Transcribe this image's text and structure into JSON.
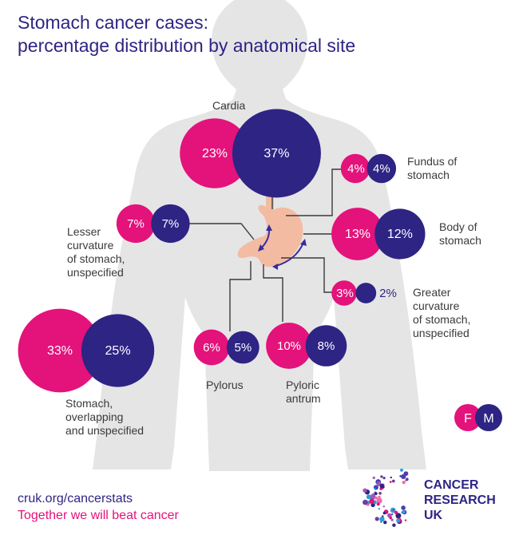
{
  "title_lines": [
    "Stomach cancer cases:",
    "percentage distribution by anatomical site"
  ],
  "colors": {
    "female": "#e4127b",
    "male": "#2e2484",
    "body": "#e5e5e6",
    "stomach": "#f3bca2",
    "line": "#3a3a3a",
    "arrow": "#3b2a9e"
  },
  "legend": {
    "female": "F",
    "male": "M"
  },
  "footer": {
    "url": "cruk.org/cancerstats",
    "slogan": "Together we will beat cancer"
  },
  "logo": {
    "line1": "CANCER",
    "line2": "RESEARCH",
    "line3": "UK"
  },
  "chart_data": {
    "type": "bubble",
    "series_names": [
      "F",
      "M"
    ],
    "sites": [
      {
        "name": "cardia",
        "label": [
          "Cardia"
        ],
        "female": 23,
        "male": 37,
        "female_label": "23%",
        "male_label": "37%"
      },
      {
        "name": "fundus",
        "label": [
          "Fundus of",
          "stomach"
        ],
        "female": 4,
        "male": 4,
        "female_label": "4%",
        "male_label": "4%"
      },
      {
        "name": "lesser-curvature",
        "label": [
          "Lesser",
          "curvature",
          "of stomach,",
          "unspecified"
        ],
        "female": 7,
        "male": 7,
        "female_label": "7%",
        "male_label": "7%"
      },
      {
        "name": "body",
        "label": [
          "Body of",
          "stomach"
        ],
        "female": 13,
        "male": 12,
        "female_label": "13%",
        "male_label": "12%"
      },
      {
        "name": "greater-curvature",
        "label": [
          "Greater",
          "curvature",
          "of stomach,",
          "unspecified"
        ],
        "female": 3,
        "male": 2,
        "female_label": "3%",
        "male_label": "2%"
      },
      {
        "name": "overlapping",
        "label": [
          "Stomach,",
          "overlapping",
          "and unspecified"
        ],
        "female": 33,
        "male": 25,
        "female_label": "33%",
        "male_label": "25%"
      },
      {
        "name": "pylorus",
        "label": [
          "Pylorus"
        ],
        "female": 6,
        "male": 5,
        "female_label": "6%",
        "male_label": "5%"
      },
      {
        "name": "pyloric-antrum",
        "label": [
          "Pyloric",
          "antrum"
        ],
        "female": 10,
        "male": 8,
        "female_label": "10%",
        "male_label": "8%"
      }
    ]
  }
}
